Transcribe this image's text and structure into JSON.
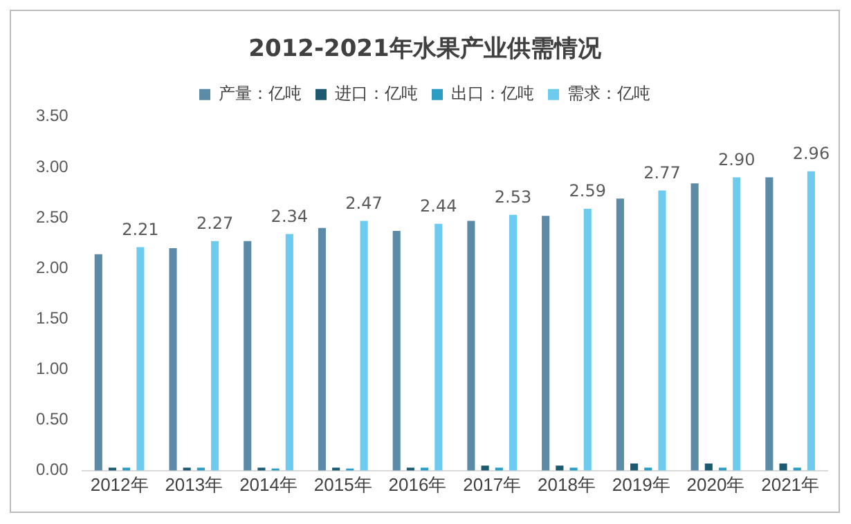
{
  "chart_data": {
    "type": "bar",
    "title": "2012-2021年水果产业供需情况",
    "categories": [
      "2012年",
      "2013年",
      "2014年",
      "2015年",
      "2016年",
      "2017年",
      "2018年",
      "2019年",
      "2020年",
      "2021年"
    ],
    "series": [
      {
        "name": "产量：亿吨",
        "color": "#5b8ba6",
        "values": [
          2.14,
          2.2,
          2.27,
          2.4,
          2.37,
          2.47,
          2.52,
          2.69,
          2.84,
          2.9
        ]
      },
      {
        "name": "进口：亿吨",
        "color": "#1c5a72",
        "values": [
          0.03,
          0.03,
          0.03,
          0.03,
          0.03,
          0.05,
          0.05,
          0.07,
          0.07,
          0.07
        ]
      },
      {
        "name": "出口：亿吨",
        "color": "#2b9cc4",
        "values": [
          0.03,
          0.03,
          0.02,
          0.02,
          0.03,
          0.03,
          0.03,
          0.03,
          0.03,
          0.03
        ]
      },
      {
        "name": "需求：亿吨",
        "color": "#6dcbef",
        "values": [
          2.21,
          2.27,
          2.34,
          2.47,
          2.44,
          2.53,
          2.59,
          2.77,
          2.9,
          2.96
        ],
        "value_labels": [
          "2.21",
          "2.27",
          "2.34",
          "2.47",
          "2.44",
          "2.53",
          "2.59",
          "2.77",
          "2.90",
          "2.96"
        ]
      }
    ],
    "ylim": [
      0,
      3.5
    ],
    "yticks": [
      {
        "value": 0,
        "label": "0.00"
      },
      {
        "value": 0.5,
        "label": "0.50"
      },
      {
        "value": 1,
        "label": "1.00"
      },
      {
        "value": 1.5,
        "label": "1.50"
      },
      {
        "value": 2,
        "label": "2.00"
      },
      {
        "value": 2.5,
        "label": "2.50"
      },
      {
        "value": 3,
        "label": "3.00"
      },
      {
        "value": 3.5,
        "label": "3.50"
      }
    ],
    "grid": false,
    "legend": "top"
  }
}
